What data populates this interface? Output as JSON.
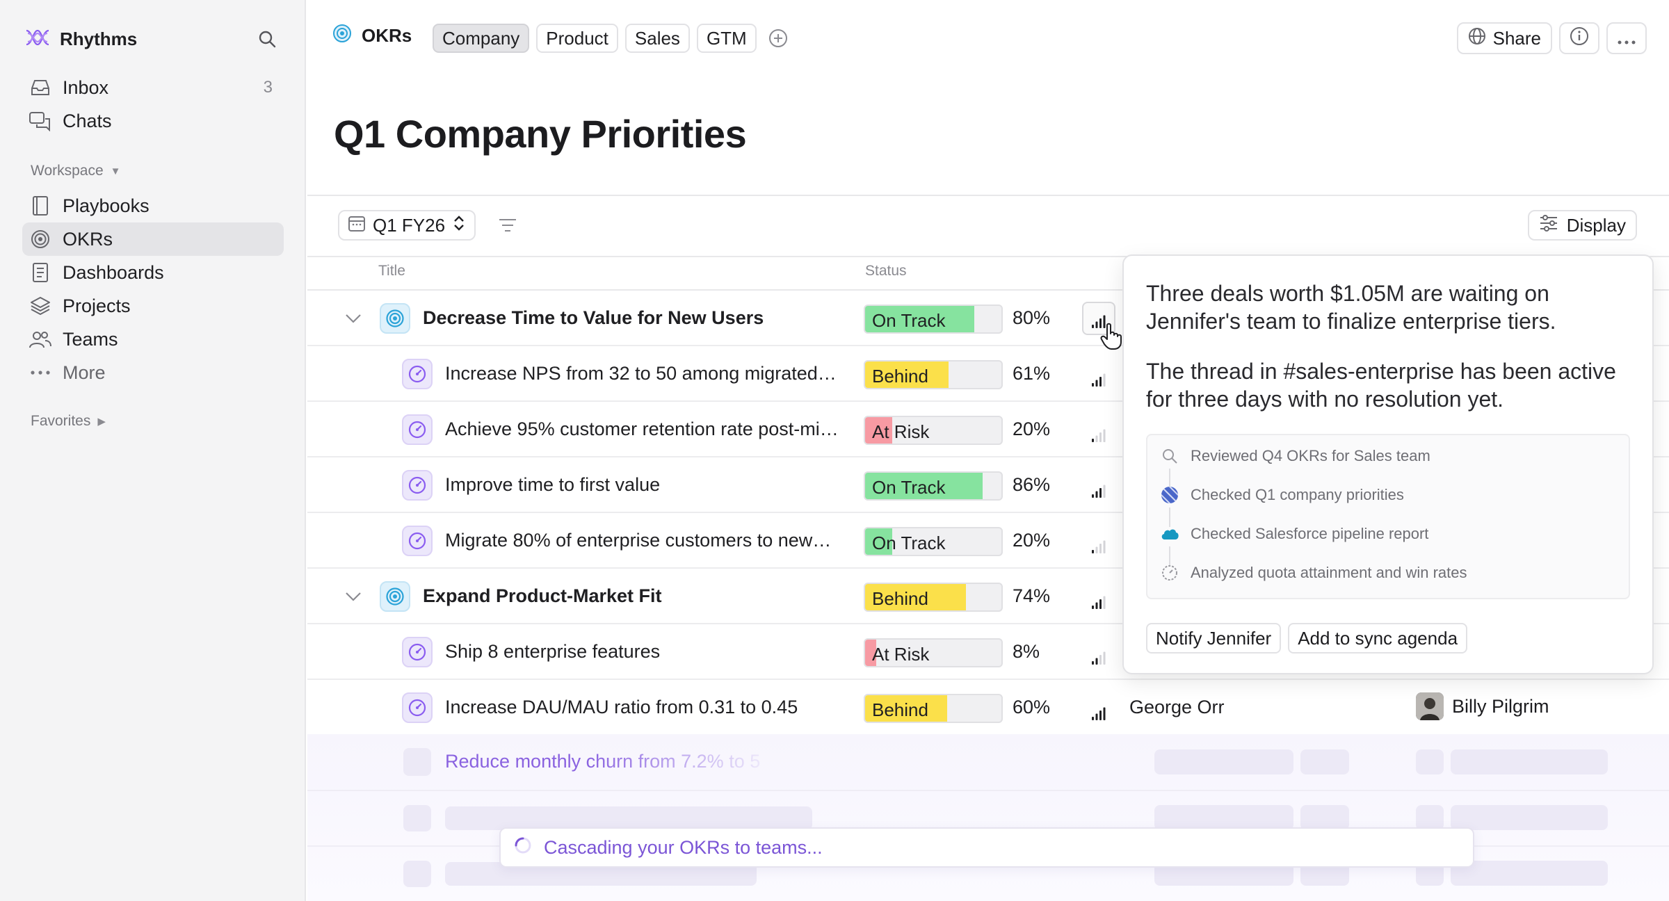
{
  "app": {
    "name": "Rhythms",
    "brand_color": "#7b55d6"
  },
  "sidebar": {
    "items": [
      {
        "label": "Inbox",
        "count": "3",
        "icon": "inbox-icon"
      },
      {
        "label": "Chats",
        "icon": "chat-bubbles-icon"
      }
    ],
    "workspace_label": "Workspace",
    "workspace_items": [
      {
        "label": "Playbooks",
        "icon": "book-icon"
      },
      {
        "label": "OKRs",
        "icon": "target-icon",
        "active": true
      },
      {
        "label": "Dashboards",
        "icon": "document-icon"
      },
      {
        "label": "Projects",
        "icon": "layers-icon"
      },
      {
        "label": "Teams",
        "icon": "people-icon"
      },
      {
        "label": "More",
        "icon": "ellipsis-icon"
      }
    ],
    "favorites_label": "Favorites"
  },
  "header": {
    "section": "OKRs",
    "tabs": [
      {
        "label": "Company",
        "active": true
      },
      {
        "label": "Product"
      },
      {
        "label": "Sales"
      },
      {
        "label": "GTM"
      }
    ],
    "share_label": "Share"
  },
  "page": {
    "title": "Q1 Company Priorities",
    "quarter": "Q1 FY26",
    "display_label": "Display"
  },
  "table": {
    "columns": {
      "title": "Title",
      "status": "Status"
    },
    "rows": [
      {
        "type": "objective",
        "title": "Decrease Time to Value for New Users",
        "status": "On Track",
        "progress": 0.8,
        "percent": "80%",
        "signal": 4
      },
      {
        "type": "kr",
        "title": "Increase NPS from 32 to 50 among migrated…",
        "status": "Behind",
        "progress": 0.61,
        "percent": "61%",
        "signal": 3
      },
      {
        "type": "kr",
        "title": "Achieve 95% customer retention rate post-mi…",
        "status": "At Risk",
        "progress": 0.2,
        "percent": "20%",
        "signal": 1
      },
      {
        "type": "kr",
        "title": "Improve time to first value",
        "status": "On Track",
        "progress": 0.86,
        "percent": "86%",
        "signal": 3
      },
      {
        "type": "kr",
        "title": "Migrate 80% of enterprise customers to new…",
        "status": "On Track",
        "progress": 0.2,
        "percent": "20%",
        "signal": 1
      },
      {
        "type": "objective",
        "title": "Expand Product-Market Fit",
        "status": "Behind",
        "progress": 0.74,
        "percent": "74%",
        "signal": 3
      },
      {
        "type": "kr",
        "title": "Ship 8 enterprise features",
        "status": "At Risk",
        "progress": 0.08,
        "percent": "8%",
        "signal": 2
      },
      {
        "type": "kr",
        "title": "Increase DAU/MAU ratio from 0.31 to 0.45",
        "status": "Behind",
        "progress": 0.6,
        "percent": "60%",
        "signal": 4,
        "owner": "George Orr",
        "assignee": "Billy Pilgrim"
      }
    ],
    "loading_row_title": "Reduce monthly churn from 7.2% to 5"
  },
  "status_colors": {
    "On Track": "#86e39f",
    "Behind": "#fbe04a",
    "At Risk": "#f79aa3"
  },
  "popover": {
    "paragraph1": "Three deals worth $1.05M are waiting on Jennifer's team to finalize enterprise tiers.",
    "paragraph2": "The thread in #sales-enterprise has been active for three days with no resolution yet.",
    "activity": [
      {
        "label": "Reviewed Q4 OKRs for Sales team",
        "icon": "search-icon"
      },
      {
        "label": "Checked Q1 company priorities",
        "icon": "striped-globe-icon"
      },
      {
        "label": "Checked Salesforce pipeline report",
        "icon": "salesforce-cloud-icon"
      },
      {
        "label": "Analyzed quota attainment and win rates",
        "icon": "gauge-icon"
      }
    ],
    "actions": {
      "notify": "Notify Jennifer",
      "agenda": "Add to sync agenda"
    }
  },
  "toast": {
    "text": "Cascading your OKRs to teams..."
  }
}
